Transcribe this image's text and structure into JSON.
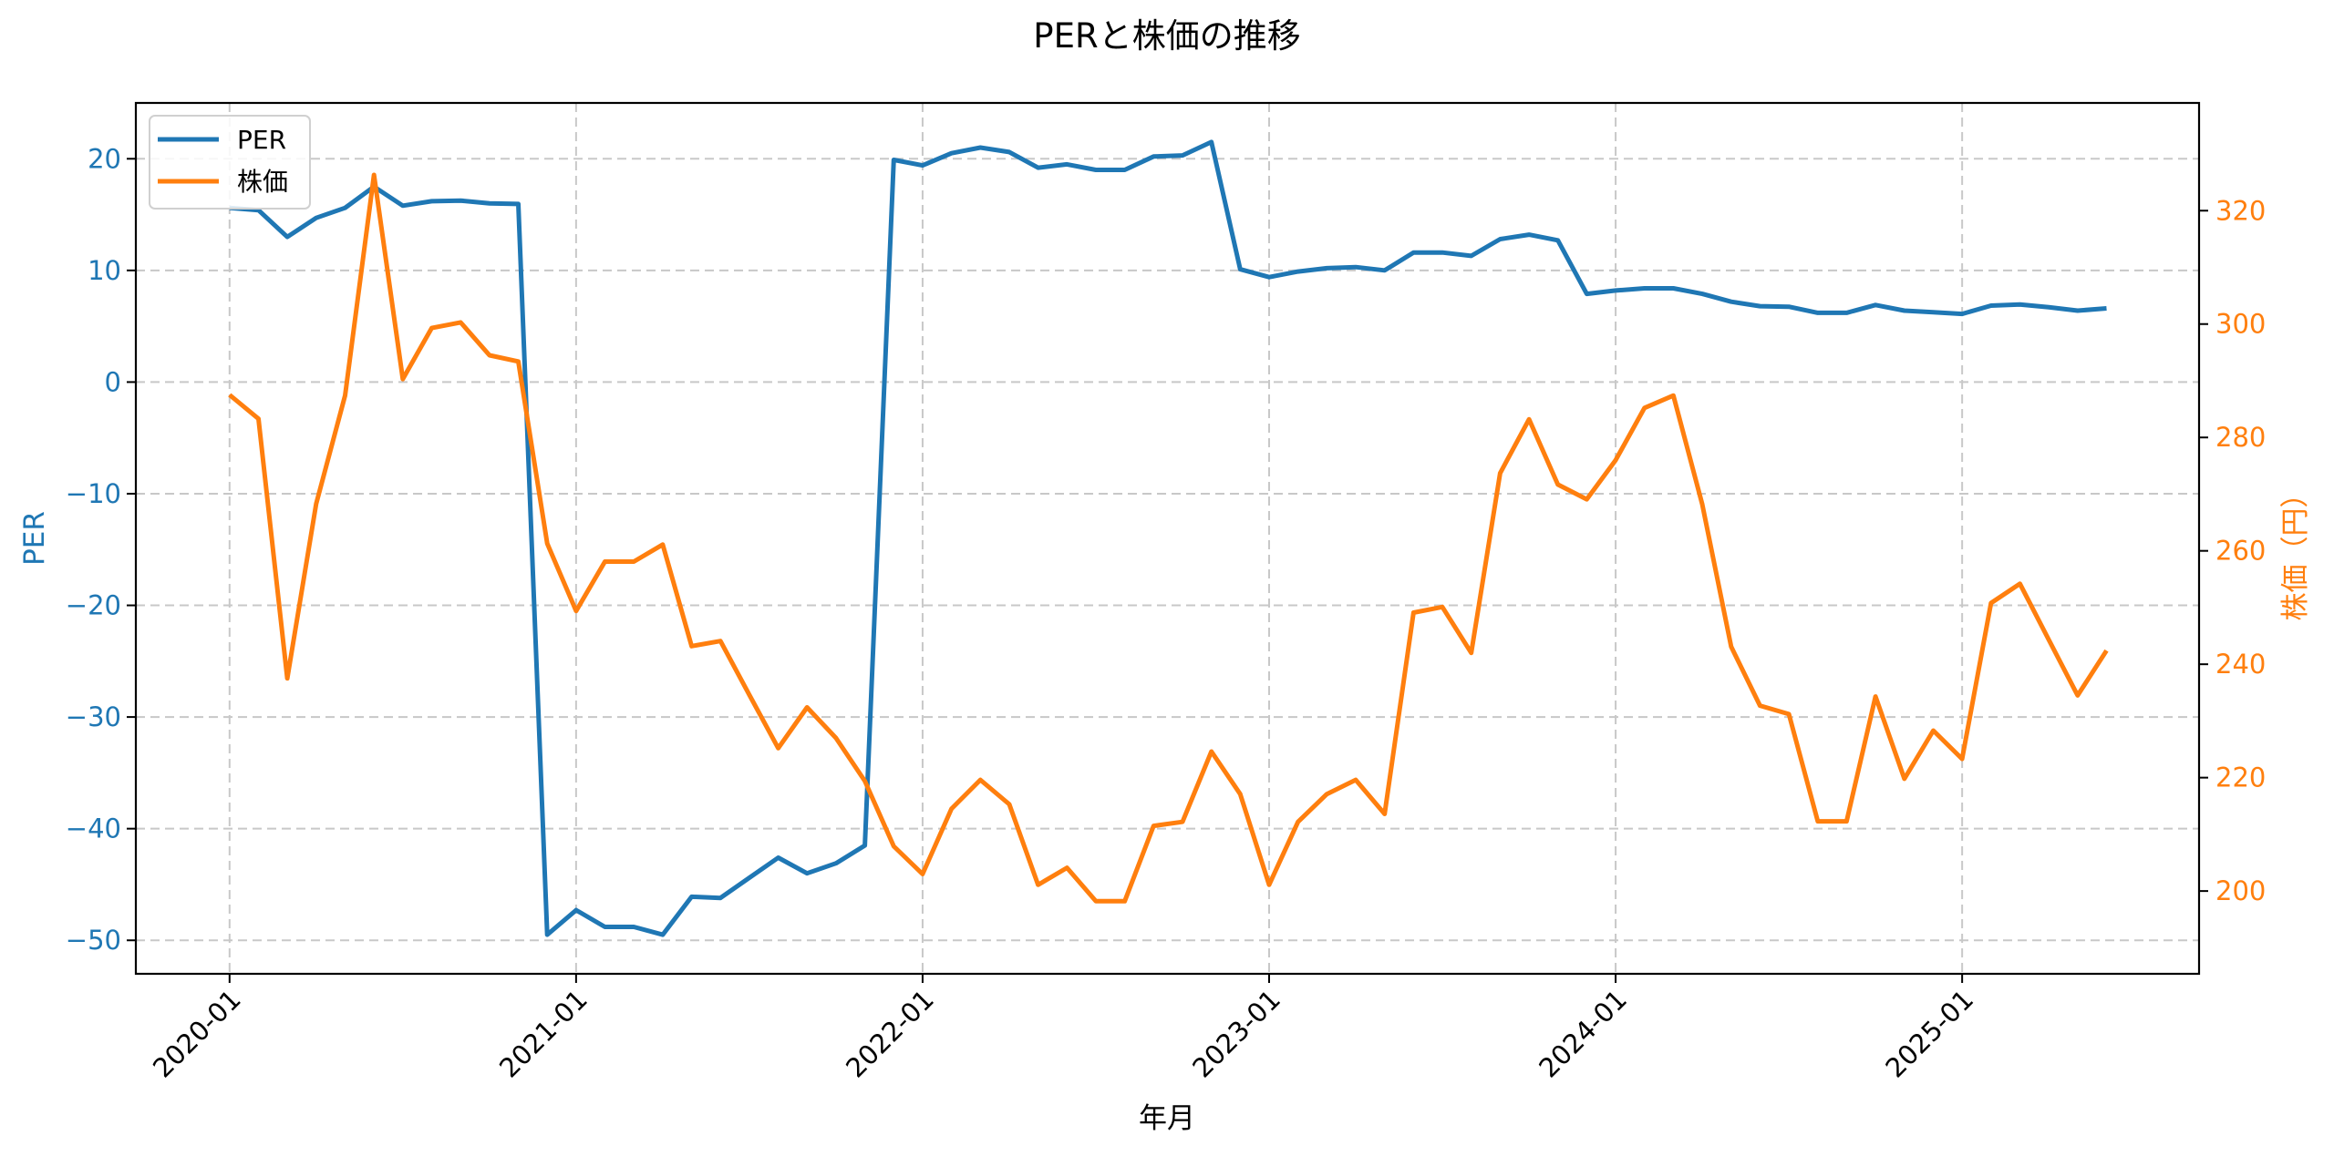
{
  "figure": {
    "title": "PERと株価の推移",
    "xlabel": "年月",
    "ylabel_left": "PER",
    "ylabel_right": "株価（円）",
    "colors": {
      "per": "#1f77b4",
      "price": "#ff7f0e",
      "grid": "#c8c8c8",
      "axis": "#000000"
    },
    "legend": [
      {
        "label": "PER",
        "color": "#1f77b4"
      },
      {
        "label": "株価",
        "color": "#ff7f0e"
      }
    ]
  },
  "chart_data": {
    "type": "line",
    "title": "PERと株価の推移",
    "xlabel": "年月",
    "ylabel": "PER",
    "ylabel_secondary": "株価（円）",
    "legend_position": "upper left",
    "grid": true,
    "x_tick_labels": [
      "2020-01",
      "2021-01",
      "2022-01",
      "2023-01",
      "2024-01",
      "2025-01"
    ],
    "y_ticks_left": [
      20,
      10,
      0,
      -10,
      -20,
      -30,
      -40,
      -50
    ],
    "y_ticks_right": [
      320,
      300,
      280,
      260,
      240,
      220,
      200
    ],
    "ylim": [
      -53,
      25
    ],
    "ylim_secondary": [
      185.4,
      339
    ],
    "x": [
      "2020-01",
      "2020-02",
      "2020-03",
      "2020-04",
      "2020-05",
      "2020-06",
      "2020-07",
      "2020-08",
      "2020-09",
      "2020-10",
      "2020-11",
      "2020-12",
      "2021-01",
      "2021-02",
      "2021-03",
      "2021-04",
      "2021-05",
      "2021-06",
      "2021-07",
      "2021-08",
      "2021-09",
      "2021-10",
      "2021-11",
      "2021-12",
      "2022-01",
      "2022-02",
      "2022-03",
      "2022-04",
      "2022-05",
      "2022-06",
      "2022-07",
      "2022-08",
      "2022-09",
      "2022-10",
      "2022-11",
      "2022-12",
      "2023-01",
      "2023-02",
      "2023-03",
      "2023-04",
      "2023-05",
      "2023-06",
      "2023-07",
      "2023-08",
      "2023-09",
      "2023-10",
      "2023-11",
      "2023-12",
      "2024-01",
      "2024-02",
      "2024-03",
      "2024-04",
      "2024-05",
      "2024-06",
      "2024-07",
      "2024-08",
      "2024-09",
      "2024-10",
      "2024-11",
      "2024-12",
      "2025-01",
      "2025-02",
      "2025-03",
      "2025-04",
      "2025-05",
      "2025-06"
    ],
    "series": [
      {
        "name": "PER",
        "axis": "left",
        "color": "#1f77b4",
        "values": [
          15.6,
          15.4,
          13.0,
          14.7,
          15.6,
          17.5,
          15.8,
          16.2,
          16.25,
          16.0,
          15.95,
          -49.5,
          -47.3,
          -48.8,
          -48.8,
          -49.5,
          -46.1,
          -46.2,
          -44.4,
          -42.6,
          -44.0,
          -43.1,
          -41.5,
          19.9,
          19.4,
          20.5,
          21.0,
          20.6,
          19.2,
          19.5,
          19.0,
          19.0,
          20.2,
          20.3,
          21.5,
          10.1,
          9.4,
          9.9,
          10.2,
          10.3,
          10.0,
          11.6,
          11.6,
          11.3,
          12.8,
          13.2,
          12.7,
          7.9,
          8.2,
          8.4,
          8.4,
          7.9,
          7.2,
          6.8,
          6.75,
          6.2,
          6.2,
          6.9,
          6.4,
          6.25,
          6.1,
          6.85,
          6.95,
          6.7,
          6.4,
          6.6
        ]
      },
      {
        "name": "株価",
        "axis": "right",
        "color": "#ff7f0e",
        "values": [
          287.5,
          283.3,
          237.5,
          268.3,
          287.4,
          326.3,
          290.3,
          299.3,
          300.3,
          294.5,
          293.4,
          261.3,
          249.4,
          258.1,
          258.1,
          261.1,
          243.2,
          244.1,
          234.6,
          225.2,
          232.4,
          227.0,
          219.4,
          207.9,
          203.0,
          214.5,
          219.6,
          215.3,
          201.1,
          204.1,
          198.2,
          198.2,
          211.5,
          212.2,
          224.6,
          217.1,
          201.1,
          212.2,
          217.1,
          219.6,
          213.6,
          249.1,
          250.1,
          242.0,
          273.7,
          283.2,
          271.7,
          269.1,
          276.0,
          285.2,
          287.4,
          268.2,
          243.1,
          232.7,
          231.2,
          212.3,
          212.3,
          234.3,
          219.8,
          228.3,
          223.3,
          250.8,
          254.2,
          244.3,
          234.5,
          242.4
        ]
      }
    ]
  }
}
